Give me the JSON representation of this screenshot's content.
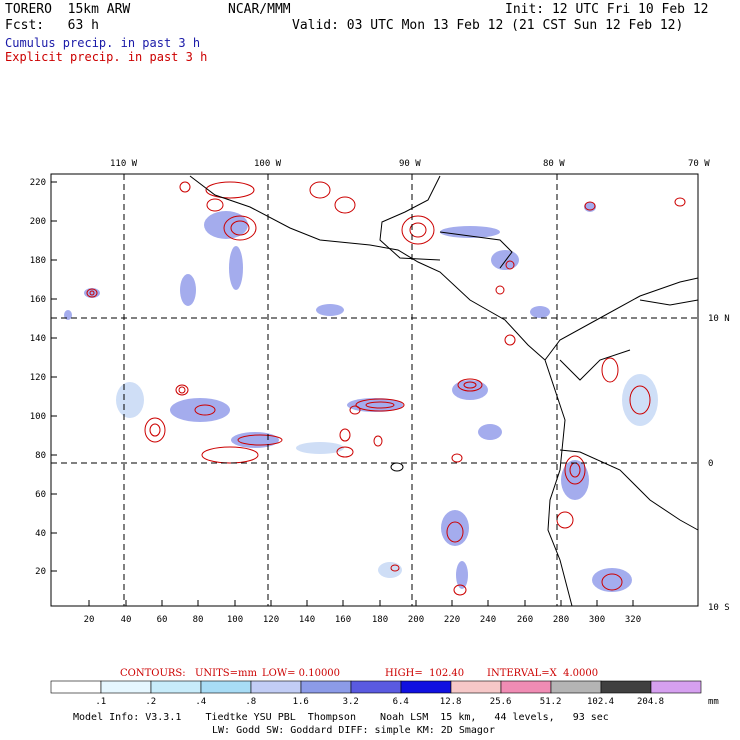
{
  "header": {
    "model": "TORERO  15km ARW",
    "org": "NCAR/MMM",
    "init": "Init: 12 UTC Fri 10 Feb 12",
    "fcst": "Fcst:   63 h",
    "valid": "Valid: 03 UTC Mon 13 Feb 12 (21 CST Sun 12 Feb 12)",
    "cumulus": "Cumulus precip. in past 3 h",
    "explicit": "Explicit precip. in past 3 h"
  },
  "colors": {
    "cumulus": "#1a1aa8",
    "explicit": "#cc0000"
  },
  "map": {
    "top_lon_labels": [
      "110 W",
      "100 W",
      "90 W",
      "80 W",
      "70 W"
    ],
    "right_lat_labels": [
      "10 N",
      "0",
      "10 S"
    ],
    "x_ticks": [
      "20",
      "40",
      "60",
      "80",
      "100",
      "120",
      "140",
      "160",
      "180",
      "200",
      "220",
      "240",
      "260",
      "280",
      "300",
      "320"
    ],
    "y_ticks": [
      "20",
      "40",
      "60",
      "80",
      "100",
      "120",
      "140",
      "160",
      "180",
      "200",
      "220"
    ]
  },
  "contours_info": {
    "label": "CONTOURS:",
    "units": "UNITS=mm",
    "low": "LOW= 0.10000",
    "high": "HIGH=  102.40",
    "interval": "INTERVAL=X  4.0000"
  },
  "scale": {
    "unit": "mm",
    "labels": [
      ".1",
      ".2",
      ".4",
      ".8",
      "1.6",
      "3.2",
      "6.4",
      "12.8",
      "25.6",
      "51.2",
      "102.4",
      "204.8"
    ],
    "colors": [
      "#ffffff",
      "#e6f7ff",
      "#c8ecfa",
      "#a8dcf5",
      "#c2cdf5",
      "#8c9be8",
      "#5a5ae0",
      "#1010e0",
      "#f6c8c8",
      "#f08cb4",
      "#b4b4b4",
      "#404040",
      "#d6a0f0"
    ]
  },
  "footer": {
    "line1": "Model Info: V3.3.1    Tiedtke YSU PBL  Thompson    Noah LSM  15 km,   44 levels,   93 sec",
    "line2": "LW: Godd SW: Goddard DIFF: simple KM: 2D Smagor"
  }
}
